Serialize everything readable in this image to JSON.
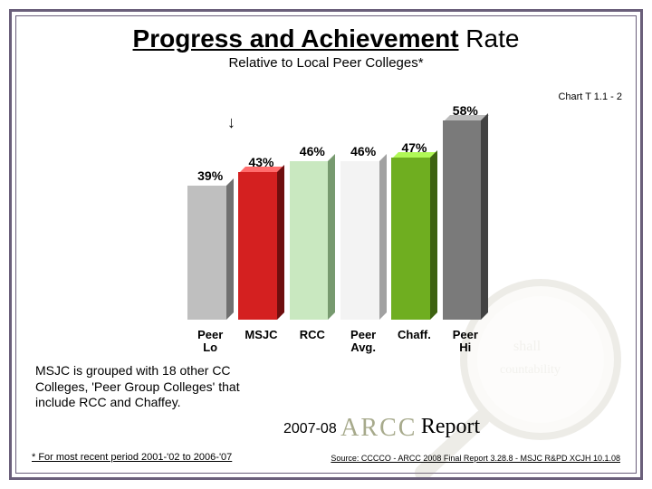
{
  "title": {
    "u": "Progress and Achievement",
    "rest": " Rate",
    "fontsize": 28
  },
  "subtitle": "Relative to Local Peer Colleges*",
  "chart_number": "Chart T 1.1 - 2",
  "chart": {
    "type": "bar",
    "ylim": [
      0,
      100
    ],
    "background_color": "#ffffff",
    "bars": [
      {
        "cat": "Peer Lo",
        "value": 39,
        "label": "39%",
        "face": "#bfbfbf",
        "side": "#8f8f8f",
        "top": "#e2e2e2"
      },
      {
        "cat": "MSJC",
        "value": 43,
        "label": "43%",
        "face": "#d42020",
        "side": "#8e1212",
        "top": "#ef5a5a"
      },
      {
        "cat": "RCC",
        "value": 46,
        "label": "46%",
        "face": "#c9e8c0",
        "side": "#98c68e",
        "top": "#e3f5dd"
      },
      {
        "cat": "Peer Avg.",
        "value": 46,
        "label": "46%",
        "face": "#f3f3f3",
        "side": "#cfcfcf",
        "top": "#ffffff"
      },
      {
        "cat": "Chaff.",
        "value": 47,
        "label": "47%",
        "face": "#6fae20",
        "side": "#4f7d16",
        "top": "#93cf48"
      },
      {
        "cat": "Peer Hi",
        "value": 58,
        "label": "58%",
        "face": "#7a7a7a",
        "side": "#555555",
        "top": "#9c9c9c"
      }
    ],
    "bar_height_per_unit": 3.8,
    "label_fontsize": 14,
    "xlabel_fontsize": 13
  },
  "note": "MSJC is grouped with 18 other CC Colleges, 'Peer Group Colleges' that include RCC and Chaffey.",
  "year": "2007-08",
  "arcc": "ARCC",
  "report": "Report",
  "footnote": "* For most recent period 2001-'02 to 2006-'07",
  "source": "Source: CCCCO - ARCC 2008 Final Report 3.28.8 - MSJC R&PD XCJH 10.1.08",
  "colors": {
    "frame": "#6a5f7a",
    "arcc_text": "#a7aa8c"
  }
}
